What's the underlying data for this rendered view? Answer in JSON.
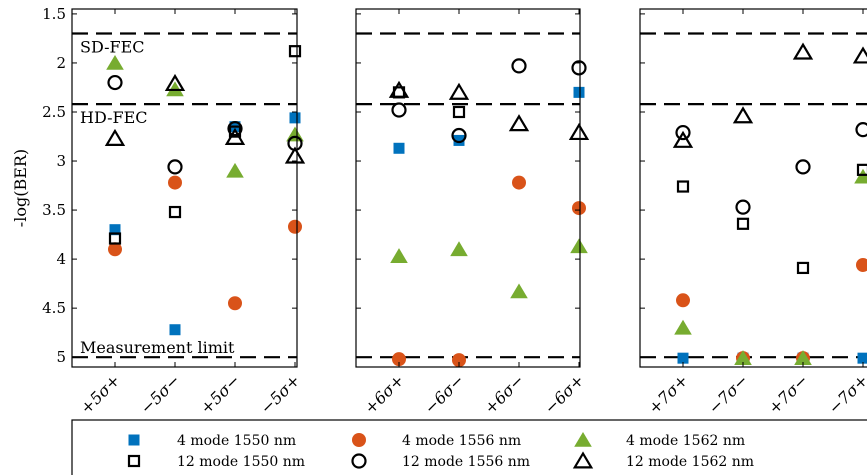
{
  "chart_data": [
    {
      "type": "scatter",
      "ylabel": "-log(BER)",
      "ylim": [
        5.1,
        1.45
      ],
      "yaxis_inverted": true,
      "yticks": [
        "1.5",
        "2",
        "2.5",
        "3",
        "3.5",
        "4",
        "4.5",
        "5"
      ],
      "categories": [
        "+5σ+",
        "−5σ−",
        "+5σ−",
        "−5σ+"
      ],
      "reference_lines": [
        {
          "label": "SD-FEC",
          "value": 1.7
        },
        {
          "label": "HD-FEC",
          "value": 2.42
        },
        {
          "label": "Measurement limit",
          "value": 5.0
        }
      ],
      "series": [
        {
          "name": "4 mode 1550 nm",
          "values": [
            3.7,
            4.72,
            2.65,
            2.56
          ]
        },
        {
          "name": "4 mode 1556 nm",
          "values": [
            3.9,
            3.22,
            4.45,
            3.67
          ]
        },
        {
          "name": "4 mode 1562 nm",
          "values": [
            2.0,
            2.27,
            3.1,
            2.73
          ]
        },
        {
          "name": "12 mode 1550 nm",
          "values": [
            3.79,
            3.52,
            2.7,
            1.88
          ]
        },
        {
          "name": "12 mode 1556 nm",
          "values": [
            2.2,
            3.06,
            2.67,
            2.82
          ]
        },
        {
          "name": "12 mode 1562 nm",
          "values": [
            2.77,
            2.21,
            2.76,
            2.95
          ]
        }
      ]
    },
    {
      "type": "scatter",
      "ylim": [
        5.1,
        1.45
      ],
      "yaxis_inverted": true,
      "categories": [
        "+6σ+",
        "−6σ−",
        "+6σ−",
        "−6σ+"
      ],
      "reference_lines": [
        {
          "label": "",
          "value": 1.7
        },
        {
          "label": "",
          "value": 2.42
        },
        {
          "label": "",
          "value": 5.0
        }
      ],
      "series": [
        {
          "name": "4 mode 1550 nm",
          "values": [
            2.87,
            2.79,
            null,
            2.3
          ]
        },
        {
          "name": "4 mode 1556 nm",
          "values": [
            5.02,
            5.03,
            3.22,
            3.48
          ]
        },
        {
          "name": "4 mode 1562 nm",
          "values": [
            3.97,
            3.9,
            4.33,
            3.87
          ]
        },
        {
          "name": "12 mode 1550 nm",
          "values": [
            2.3,
            2.5,
            null,
            null
          ]
        },
        {
          "name": "12 mode 1556 nm",
          "values": [
            2.48,
            2.74,
            2.03,
            2.05
          ]
        },
        {
          "name": "12 mode 1562 nm",
          "values": [
            2.28,
            2.3,
            2.62,
            2.71
          ]
        }
      ]
    },
    {
      "type": "scatter",
      "ylim": [
        5.1,
        1.45
      ],
      "yaxis_inverted": true,
      "categories": [
        "+7σ+",
        "−7σ−",
        "+7σ−",
        "−7σ+"
      ],
      "reference_lines": [
        {
          "label": "",
          "value": 1.7
        },
        {
          "label": "",
          "value": 2.42
        },
        {
          "label": "",
          "value": 5.0
        }
      ],
      "series": [
        {
          "name": "4 mode 1550 nm",
          "values": [
            5.01,
            5.01,
            5.01,
            5.01
          ]
        },
        {
          "name": "4 mode 1556 nm",
          "values": [
            4.42,
            5.01,
            5.01,
            4.06
          ]
        },
        {
          "name": "4 mode 1562 nm",
          "values": [
            4.7,
            5.01,
            5.01,
            3.16
          ]
        },
        {
          "name": "12 mode 1550 nm",
          "values": [
            3.26,
            3.64,
            4.09,
            3.09
          ]
        },
        {
          "name": "12 mode 1556 nm",
          "values": [
            2.71,
            3.47,
            3.06,
            2.68
          ]
        },
        {
          "name": "12 mode 1562 nm",
          "values": [
            2.79,
            2.54,
            1.89,
            1.93
          ]
        }
      ]
    }
  ],
  "legend": {
    "placement": "bottom",
    "entries": [
      {
        "label": "4 mode 1550 nm",
        "marker": "square",
        "filled": true,
        "color": "#0072bd"
      },
      {
        "label": "4 mode 1556 nm",
        "marker": "circle",
        "filled": true,
        "color": "#d95319"
      },
      {
        "label": "4 mode 1562 nm",
        "marker": "triangle",
        "filled": true,
        "color": "#77ac30"
      },
      {
        "label": "12 mode 1550 nm",
        "marker": "square",
        "filled": false,
        "color": "#000000"
      },
      {
        "label": "12 mode 1556 nm",
        "marker": "circle",
        "filled": false,
        "color": "#000000"
      },
      {
        "label": "12 mode 1562 nm",
        "marker": "triangle",
        "filled": false,
        "color": "#000000"
      }
    ]
  }
}
